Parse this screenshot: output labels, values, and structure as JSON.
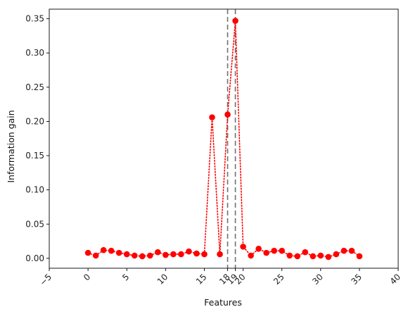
{
  "chart_data": {
    "type": "line",
    "title": "",
    "xlabel": "Features",
    "ylabel": "Information gain",
    "xlim": [
      -5,
      40
    ],
    "ylim": [
      -0.0145,
      0.364
    ],
    "x_ticks": [
      -5,
      0,
      5,
      10,
      15,
      18,
      19,
      20,
      25,
      30,
      35,
      40
    ],
    "y_ticks": [
      0.0,
      0.05,
      0.1,
      0.15,
      0.2,
      0.25,
      0.3,
      0.35
    ],
    "y_tick_labels": [
      "0.00",
      "0.05",
      "0.10",
      "0.15",
      "0.20",
      "0.25",
      "0.30",
      "0.35"
    ],
    "x_tick_rotation_deg": -45,
    "grid": false,
    "legend": "none",
    "vlines": [
      18,
      19
    ],
    "vline_style": "dashed",
    "vline_color": "#707070",
    "series": [
      {
        "color": "#ff0000",
        "line_style": "dotted",
        "marker": "circle",
        "x": [
          0,
          1,
          2,
          3,
          4,
          5,
          6,
          7,
          8,
          9,
          10,
          11,
          12,
          13,
          14,
          15,
          16,
          17,
          18,
          19,
          20,
          21,
          22,
          23,
          24,
          25,
          26,
          27,
          28,
          29,
          30,
          31,
          32,
          33,
          34,
          35
        ],
        "values": [
          0.008,
          0.004,
          0.012,
          0.011,
          0.008,
          0.006,
          0.004,
          0.003,
          0.004,
          0.009,
          0.005,
          0.006,
          0.006,
          0.01,
          0.007,
          0.006,
          0.206,
          0.006,
          0.21,
          0.347,
          0.017,
          0.004,
          0.014,
          0.008,
          0.011,
          0.011,
          0.004,
          0.003,
          0.009,
          0.003,
          0.004,
          0.002,
          0.006,
          0.011,
          0.011,
          0.003
        ]
      }
    ]
  }
}
